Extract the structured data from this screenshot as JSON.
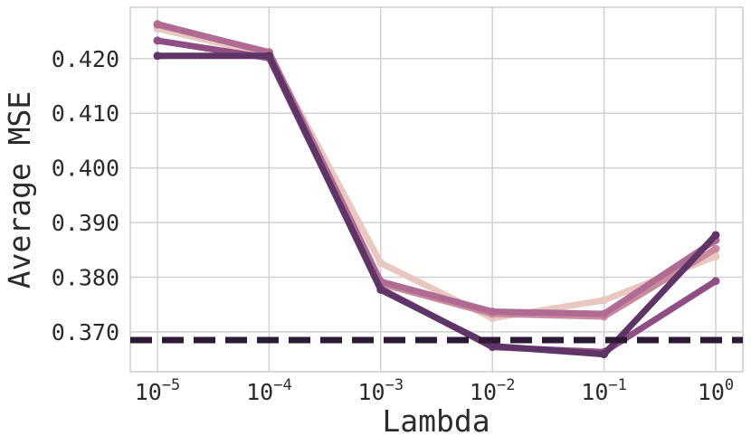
{
  "chart_data": {
    "type": "line",
    "xlabel": "Lambda",
    "ylabel": "Average MSE",
    "x": [
      1e-05,
      0.0001,
      0.001,
      0.01,
      0.1,
      1
    ],
    "x_ticks": [
      {
        "base": "10",
        "exp": "−5"
      },
      {
        "base": "10",
        "exp": "−4"
      },
      {
        "base": "10",
        "exp": "−3"
      },
      {
        "base": "10",
        "exp": "−2"
      },
      {
        "base": "10",
        "exp": "−1"
      },
      {
        "base": "10",
        "exp": "0"
      }
    ],
    "x_scale": "log",
    "y_ticks": [
      "0.370",
      "0.380",
      "0.390",
      "0.400",
      "0.410",
      "0.420"
    ],
    "y_tick_values": [
      0.37,
      0.38,
      0.39,
      0.4,
      0.41,
      0.42
    ],
    "ylim": [
      0.3627,
      0.4294
    ],
    "grid": true,
    "series": [
      {
        "color": "#e8c8c0",
        "values": [
          0.4255,
          0.4207,
          0.3826,
          0.3725,
          0.3758,
          0.3838
        ]
      },
      {
        "color": "#c98a9e",
        "values": [
          0.4262,
          0.4212,
          0.3788,
          0.3733,
          0.3728,
          0.3852
        ]
      },
      {
        "color": "#b06b92",
        "values": [
          0.4263,
          0.4211,
          0.3792,
          0.3737,
          0.3733,
          0.3868
        ]
      },
      {
        "color": "#8f4f84",
        "values": [
          0.4233,
          0.4201,
          0.3779,
          0.3672,
          0.3663,
          0.3793
        ]
      },
      {
        "color": "#5e3566",
        "values": [
          0.4205,
          0.4205,
          0.3777,
          0.3674,
          0.3659,
          0.3877
        ]
      }
    ],
    "baseline": {
      "value": 0.3685,
      "color": "#2a1a33",
      "style": "dashed"
    }
  }
}
